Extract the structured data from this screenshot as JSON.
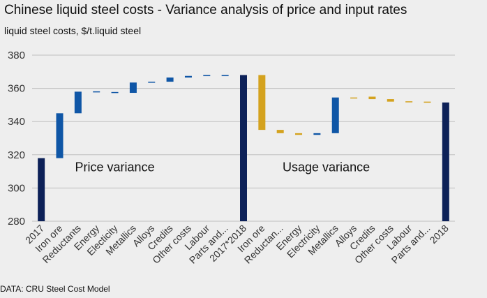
{
  "title": "Chinese liquid steel costs - Variance analysis of price and input rates",
  "subtitle": "liquid steel costs, $/t.liquid steel",
  "source": "DATA: CRU Steel Cost Model",
  "colors": {
    "total": "#0d2158",
    "price": "#0f56a6",
    "usage": "#d4a21e",
    "grid": "#bdbdbd"
  },
  "chart_data": {
    "type": "bar",
    "subtype": "waterfall",
    "title": "Chinese liquid steel costs - Variance analysis of price and input rates",
    "ylabel": "liquid steel costs, $/t.liquid steel",
    "ylim": [
      280,
      380
    ],
    "yticks": [
      280,
      300,
      320,
      340,
      360,
      380
    ],
    "grid": true,
    "categories": [
      "2017",
      "Iron ore",
      "Reductants",
      "Energy",
      "Electicity",
      "Metallics",
      "Alloys",
      "Credits",
      "Other costs",
      "Labour",
      "Parts and...",
      "2017*2018",
      "Iron ore",
      "Reductan...",
      "Energy",
      "Electricity",
      "Metallics",
      "Alloys",
      "Credits",
      "Other costs",
      "Labour",
      "Parts and...",
      "2018"
    ],
    "bars": [
      {
        "kind": "total",
        "low": 280,
        "high": 318
      },
      {
        "kind": "price",
        "low": 318,
        "high": 345
      },
      {
        "kind": "price",
        "low": 345,
        "high": 358
      },
      {
        "kind": "price",
        "low": 357.8,
        "high": 358.2
      },
      {
        "kind": "price",
        "low": 357.3,
        "high": 357.8
      },
      {
        "kind": "price",
        "low": 357.3,
        "high": 363.5
      },
      {
        "kind": "price",
        "low": 363.5,
        "high": 364
      },
      {
        "kind": "price",
        "low": 364,
        "high": 366.5
      },
      {
        "kind": "price",
        "low": 366.5,
        "high": 367.5
      },
      {
        "kind": "price",
        "low": 367.5,
        "high": 368
      },
      {
        "kind": "price",
        "low": 368,
        "high": 368
      },
      {
        "kind": "total",
        "low": 280,
        "high": 368
      },
      {
        "kind": "usage",
        "low": 335,
        "high": 368
      },
      {
        "kind": "usage",
        "low": 333,
        "high": 335
      },
      {
        "kind": "usage",
        "low": 332,
        "high": 333
      },
      {
        "kind": "price",
        "low": 332,
        "high": 333
      },
      {
        "kind": "price",
        "low": 333,
        "high": 354.5
      },
      {
        "kind": "usage",
        "low": 354.5,
        "high": 354.5
      },
      {
        "kind": "usage",
        "low": 353.5,
        "high": 355
      },
      {
        "kind": "usage",
        "low": 352,
        "high": 353.5
      },
      {
        "kind": "usage",
        "low": 351.8,
        "high": 352.2
      },
      {
        "kind": "usage",
        "low": 351.5,
        "high": 352
      },
      {
        "kind": "total",
        "low": 280,
        "high": 351.5
      }
    ],
    "annotations": [
      {
        "text": "Price variance",
        "x": 4,
        "y": 310
      },
      {
        "text": "Usage variance",
        "x": 15.5,
        "y": 310
      }
    ]
  }
}
